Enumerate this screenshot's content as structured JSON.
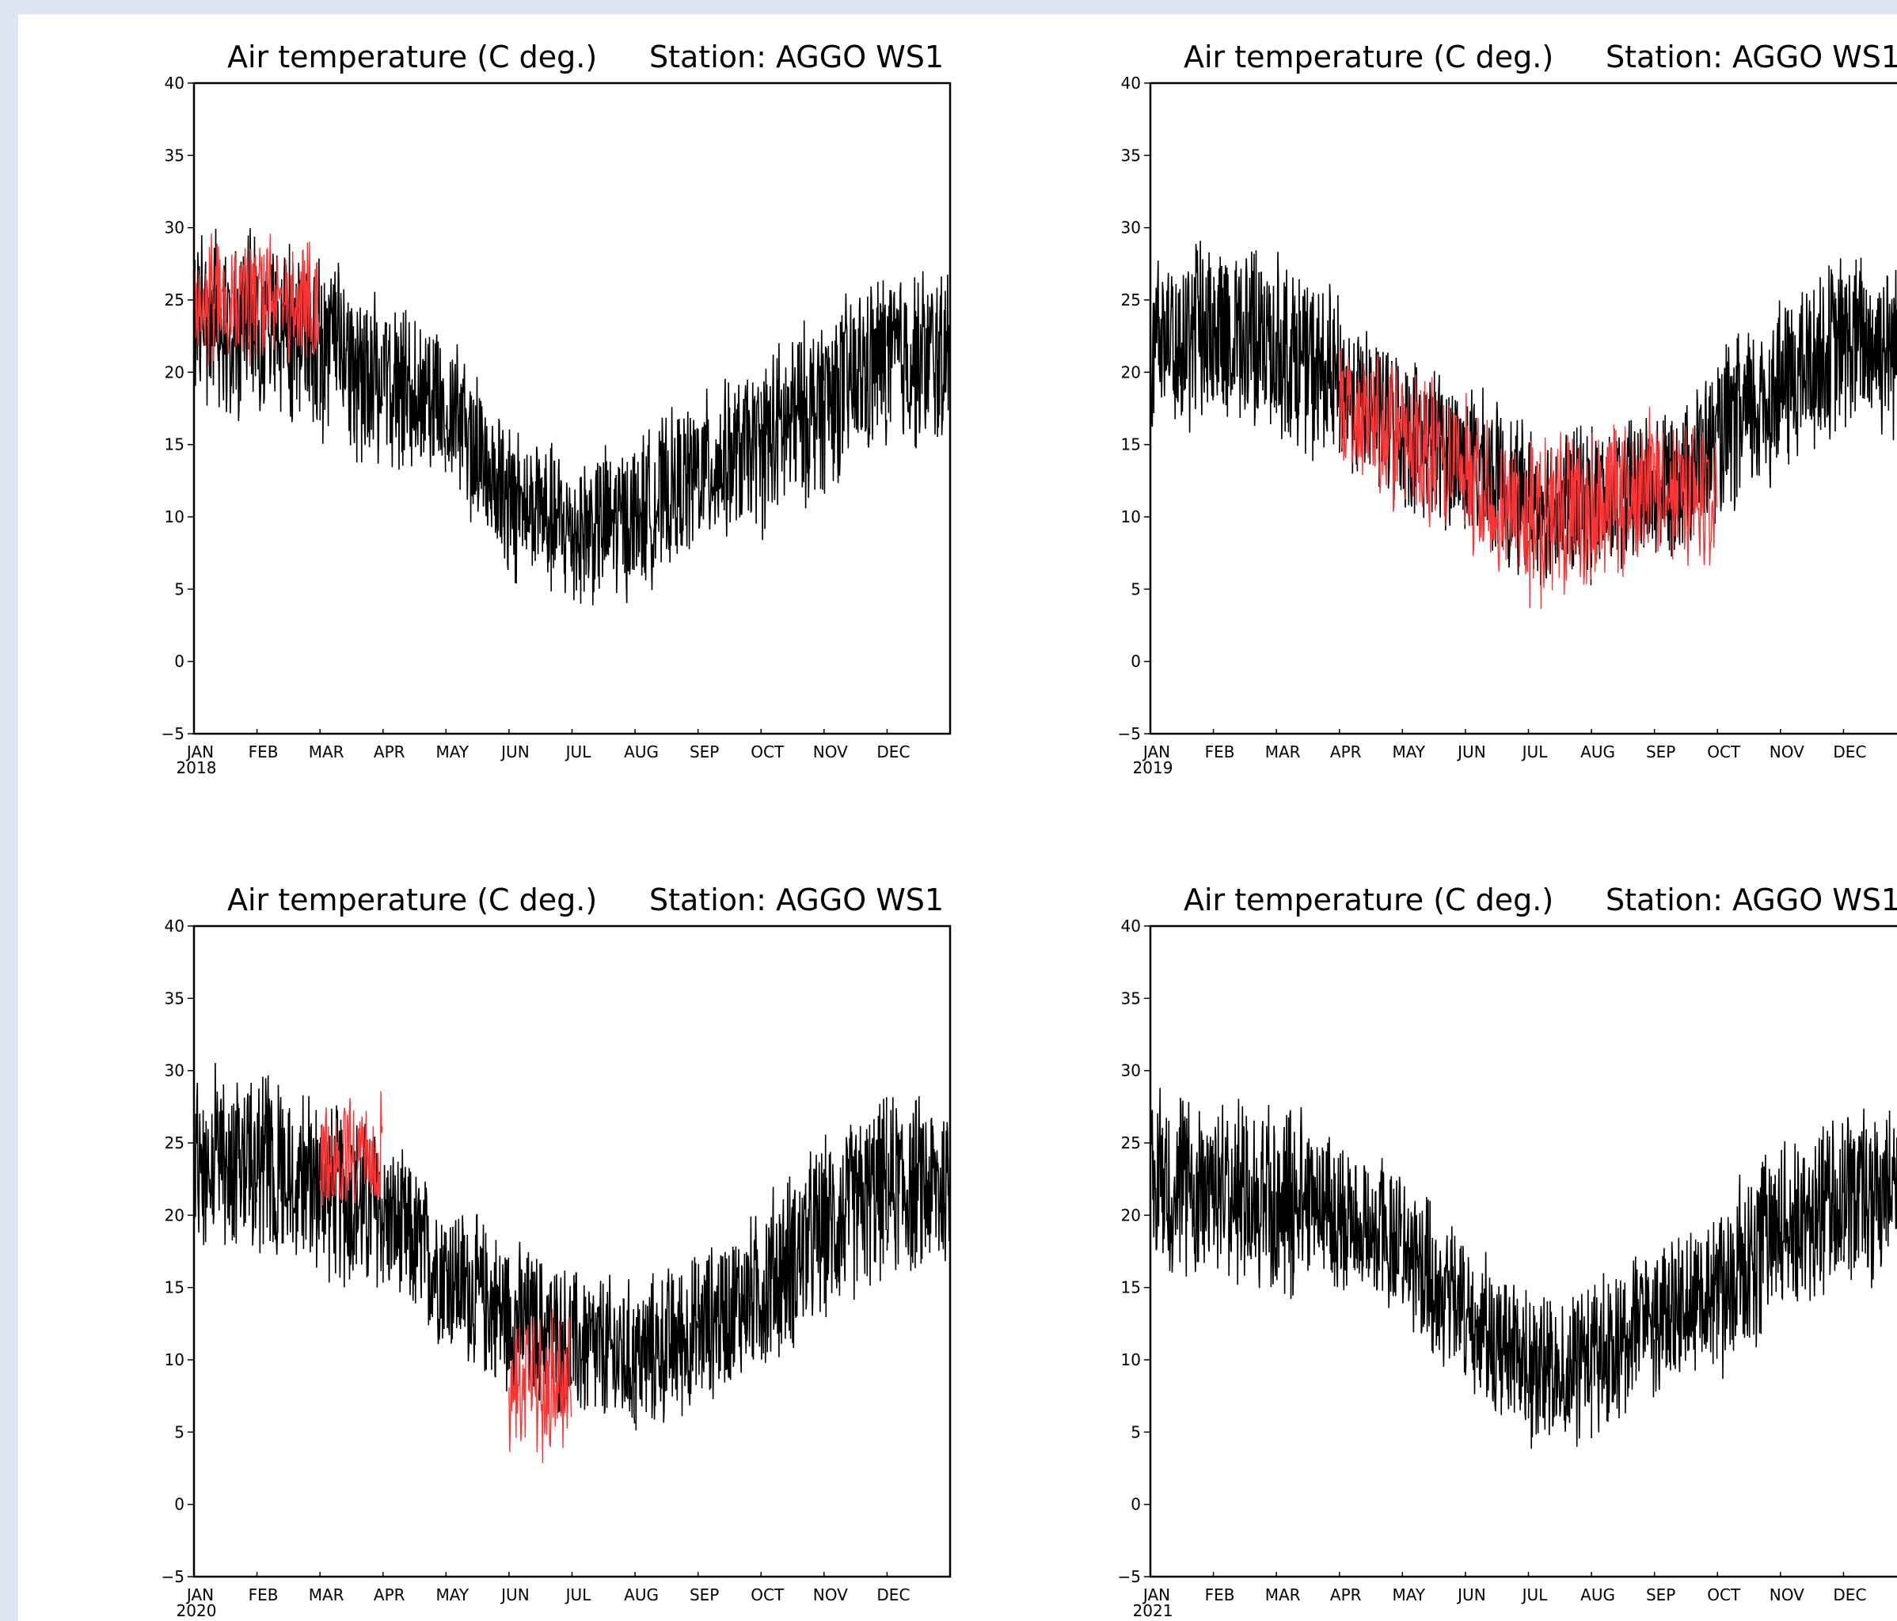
{
  "chart_data": [
    {
      "type": "line",
      "title": "Air temperature (C deg.)",
      "station": "Station: AGGO WS1",
      "year": "2018",
      "ylim": [
        -5,
        40
      ],
      "yticks": [
        "40",
        "35",
        "30",
        "25",
        "20",
        "15",
        "10",
        "5",
        "0",
        "−5"
      ],
      "months": [
        "JAN",
        "FEB",
        "MAR",
        "APR",
        "MAY",
        "JUN",
        "JUL",
        "AUG",
        "SEP",
        "OCT",
        "NOV",
        "DEC"
      ],
      "series": [
        {
          "color": "#000000",
          "x": [
            "JAN",
            "FEB",
            "MAR",
            "APR",
            "MAY",
            "JUN",
            "JUL",
            "AUG",
            "SEP",
            "OCT",
            "NOV",
            "DEC"
          ],
          "mean": [
            24,
            23,
            22,
            19,
            18,
            11,
            9,
            10,
            13,
            15,
            18,
            21
          ],
          "amplitude": [
            7,
            7,
            7,
            6,
            6,
            6,
            6,
            6,
            6,
            7,
            7,
            7
          ]
        },
        {
          "color": "#ff3333",
          "x": [
            "JAN",
            "FEB"
          ],
          "mean": [
            25,
            25
          ],
          "amplitude": [
            5,
            5
          ]
        }
      ]
    },
    {
      "type": "line",
      "title": "Air temperature (C deg.)",
      "station": "Station: AGGO WS1",
      "year": "2019",
      "ylim": [
        -5,
        40
      ],
      "yticks": [
        "40",
        "35",
        "30",
        "25",
        "20",
        "15",
        "10",
        "5",
        "0",
        "−5"
      ],
      "months": [
        "JAN",
        "FEB",
        "MAR",
        "APR",
        "MAY",
        "JUN",
        "JUL",
        "AUG",
        "SEP",
        "OCT",
        "NOV",
        "DEC"
      ],
      "series": [
        {
          "color": "#000000",
          "x": [
            "JAN",
            "FEB",
            "MAR",
            "APR",
            "MAY",
            "JUN",
            "JUL",
            "AUG",
            "SEP",
            "OCT",
            "NOV",
            "DEC"
          ],
          "mean": [
            22,
            23,
            22,
            19,
            16,
            14,
            11,
            11,
            12,
            15,
            19,
            22
          ],
          "amplitude": [
            7,
            7,
            7,
            6,
            6,
            6,
            6,
            6,
            6,
            7,
            7,
            7
          ]
        },
        {
          "color": "#ff3333",
          "x": [
            "APR",
            "MAY",
            "JUN",
            "JUL",
            "AUG",
            "SEP"
          ],
          "mean": [
            18,
            15,
            13,
            10,
            11,
            12
          ],
          "amplitude": [
            6,
            6,
            6,
            7,
            6,
            6
          ]
        }
      ]
    },
    {
      "type": "line",
      "title": "Air temperature (C deg.)",
      "station": "Station: AGGO WS1",
      "year": "2020",
      "ylim": [
        -5,
        40
      ],
      "yticks": [
        "40",
        "35",
        "30",
        "25",
        "20",
        "15",
        "10",
        "5",
        "0",
        "−5"
      ],
      "months": [
        "JAN",
        "FEB",
        "MAR",
        "APR",
        "MAY",
        "JUN",
        "JUL",
        "AUG",
        "SEP",
        "OCT",
        "NOV",
        "DEC"
      ],
      "series": [
        {
          "color": "#000000",
          "x": [
            "JAN",
            "FEB",
            "MAR",
            "APR",
            "MAY",
            "JUN",
            "JUL",
            "AUG",
            "SEP",
            "OCT",
            "NOV",
            "DEC"
          ],
          "mean": [
            24,
            24,
            22,
            20,
            16,
            13,
            11,
            10,
            12,
            15,
            19,
            22
          ],
          "amplitude": [
            7,
            7,
            7,
            6,
            6,
            6,
            6,
            6,
            6,
            7,
            7,
            7
          ]
        },
        {
          "color": "#ff3333",
          "x": [
            "MAR",
            "JUN"
          ],
          "mean": [
            24,
            8
          ],
          "amplitude": [
            5,
            6
          ]
        }
      ]
    },
    {
      "type": "line",
      "title": "Air temperature (C deg.)",
      "station": "Station: AGGO WS1",
      "year": "2021",
      "ylim": [
        -5,
        40
      ],
      "yticks": [
        "40",
        "35",
        "30",
        "25",
        "20",
        "15",
        "10",
        "5",
        "0",
        "−5"
      ],
      "months": [
        "JAN",
        "FEB",
        "MAR",
        "APR",
        "MAY",
        "JUN",
        "JUL",
        "AUG",
        "SEP",
        "OCT",
        "NOV",
        "DEC"
      ],
      "series": [
        {
          "color": "#000000",
          "x": [
            "JAN",
            "FEB",
            "MAR",
            "APR",
            "MAY",
            "JUN",
            "JUL",
            "AUG",
            "SEP",
            "OCT",
            "NOV",
            "DEC"
          ],
          "mean": [
            23,
            22,
            21,
            20,
            18,
            13,
            9,
            10,
            13,
            15,
            19,
            21
          ],
          "amplitude": [
            7,
            7,
            7,
            6,
            6,
            6,
            6,
            6,
            6,
            7,
            7,
            7
          ]
        }
      ]
    }
  ]
}
